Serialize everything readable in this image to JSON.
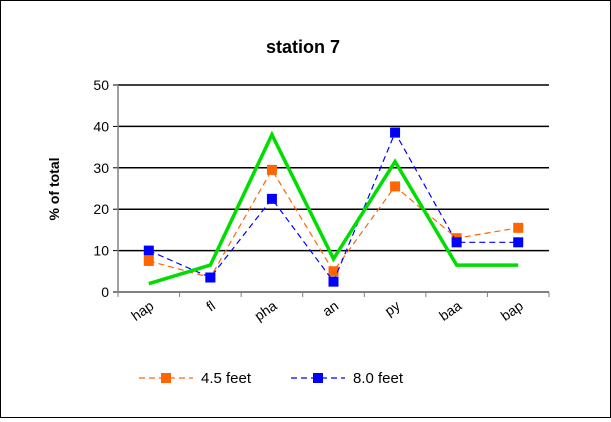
{
  "chart_data": {
    "type": "line",
    "title": "station 7",
    "xlabel": "",
    "ylabel": "% of total",
    "categories": [
      "hap",
      "fl",
      "pha",
      "an",
      "py",
      "baa",
      "bap"
    ],
    "ylim": [
      0,
      50
    ],
    "yticks": [
      0,
      10,
      20,
      30,
      40,
      50
    ],
    "grid": true,
    "legend": "bottom",
    "series": [
      {
        "name": "4.5 feet",
        "values": [
          7.5,
          3.5,
          29.5,
          5,
          25.5,
          13,
          15.5
        ],
        "color": "#ff6600",
        "style": "dashed",
        "marker": "square",
        "in_legend": true
      },
      {
        "name": "8.0 feet",
        "values": [
          10,
          3.5,
          22.5,
          2.5,
          38.5,
          12,
          12
        ],
        "color": "#0000ff",
        "style": "dashed",
        "marker": "square",
        "in_legend": true
      },
      {
        "name": "",
        "values": [
          2,
          6.5,
          38,
          8,
          31.5,
          6.5,
          6.5
        ],
        "color": "#00dd00",
        "style": "solid",
        "marker": "none",
        "in_legend": false
      }
    ]
  }
}
